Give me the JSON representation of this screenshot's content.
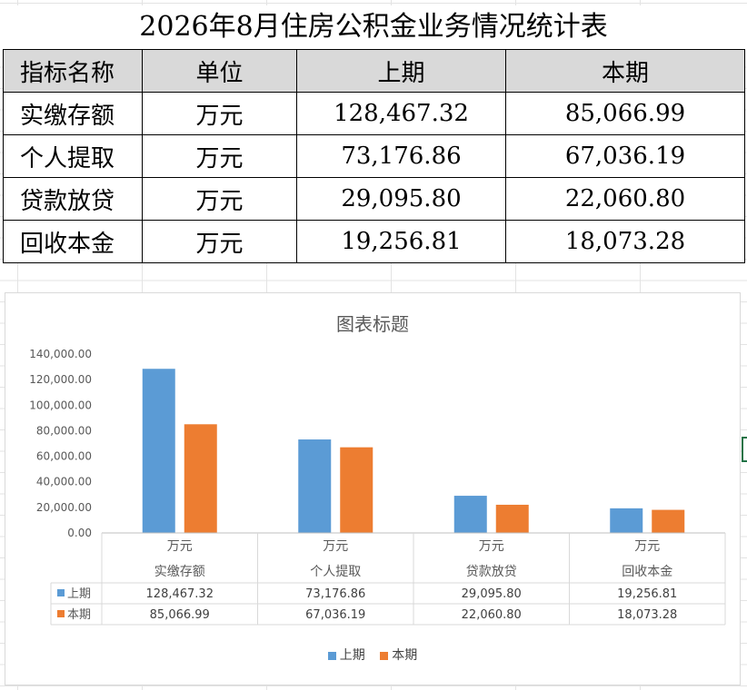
{
  "sheet": {
    "title": "2026年8月住房公积金业务情况统计表",
    "headers": [
      "指标名称",
      "单位",
      "上期",
      "本期"
    ],
    "rows": [
      {
        "name": "实缴存额",
        "unit": "万元",
        "prev": "128,467.32",
        "cur": "85,066.99"
      },
      {
        "name": "个人提取",
        "unit": "万元",
        "prev": "73,176.86",
        "cur": "67,036.19"
      },
      {
        "name": "贷款放贷",
        "unit": "万元",
        "prev": "29,095.80",
        "cur": "22,060.80"
      },
      {
        "name": "回收本金",
        "unit": "万元",
        "prev": "19,256.81",
        "cur": "18,073.28"
      }
    ]
  },
  "chart_data": {
    "type": "bar",
    "title": "图表标题",
    "categories": [
      [
        "万元",
        "实缴存额"
      ],
      [
        "万元",
        "个人提取"
      ],
      [
        "万元",
        "贷款放贷"
      ],
      [
        "万元",
        "回收本金"
      ]
    ],
    "series": [
      {
        "name": "上期",
        "color": "#5b9bd5",
        "values": [
          128467.32,
          73176.86,
          29095.8,
          19256.81
        ],
        "labels": [
          "128,467.32",
          "73,176.86",
          "29,095.80",
          "19,256.81"
        ]
      },
      {
        "name": "本期",
        "color": "#ed7d31",
        "values": [
          85066.99,
          67036.19,
          22060.8,
          18073.28
        ],
        "labels": [
          "85,066.99",
          "67,036.19",
          "22,060.80",
          "18,073.28"
        ]
      }
    ],
    "ylim": [
      0,
      140000
    ],
    "yticks": [
      "0.00",
      "20,000.00",
      "40,000.00",
      "60,000.00",
      "80,000.00",
      "100,000.00",
      "120,000.00",
      "140,000.00"
    ],
    "grid": false,
    "data_table": true,
    "legend": "bottom"
  }
}
